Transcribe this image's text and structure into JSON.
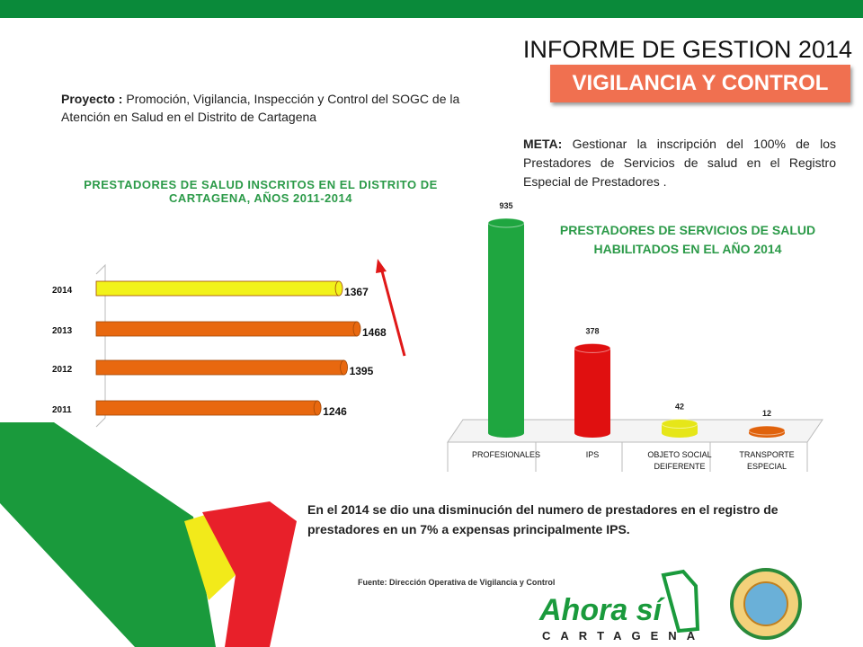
{
  "header": {
    "title": "INFORME DE GESTION 2014",
    "subtitle": "VIGILANCIA Y CONTROL"
  },
  "project": {
    "label": "Proyecto :",
    "text": "Promoción, Vigilancia, Inspección y Control del SOGC de la Atención en Salud en el Distrito de Cartagena"
  },
  "meta": {
    "label": "META:",
    "text": "Gestionar la inscripción del 100% de los Prestadores de Servicios de salud en el Registro Especial de Prestadores ."
  },
  "chart_data": [
    {
      "type": "hbar",
      "title": "PRESTADORES DE SALUD INSCRITOS EN EL DISTRITO DE CARTAGENA, AÑOS 2011-2014",
      "categories": [
        "2014",
        "2013",
        "2012",
        "2011"
      ],
      "values": [
        1367,
        1468,
        1395,
        1246
      ],
      "colors": [
        "#f2f21a",
        "#e8680f",
        "#e8680f",
        "#e8680f"
      ]
    },
    {
      "type": "bar",
      "title": "PRESTADORES DE SERVICIOS DE SALUD HABILITADOS EN EL AÑO 2014",
      "categories": [
        "PROFESIONALES",
        "IPS",
        "OBJETO SOCIAL DEIFERENTE",
        "TRANSPORTE ESPECIAL"
      ],
      "values": [
        935,
        378,
        42,
        12
      ],
      "colors": [
        "#1fa640",
        "#e01010",
        "#e6e619",
        "#e0620c"
      ]
    }
  ],
  "conclusion": "En el 2014 se dio una disminución del numero de prestadores en el registro de prestadores en un 7% a expensas principalmente IPS.",
  "source": "Fuente: Dirección Operativa de Vigilancia y Control",
  "logo": {
    "main": "Ahora sí",
    "city": "CARTAGENA"
  }
}
